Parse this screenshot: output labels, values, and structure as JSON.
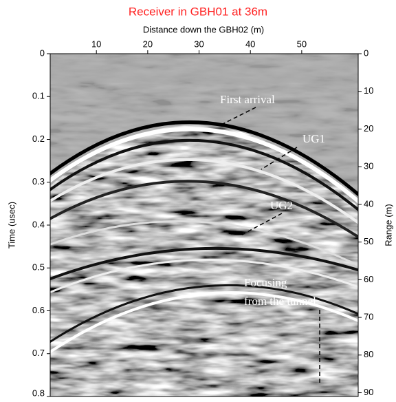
{
  "chart_data": {
    "type": "radargram",
    "title": "Receiver in GBH01 at 36m",
    "x_label": "Distance down the GBH02 (m)",
    "y_label": "Time (usec)",
    "y2_label": "Range (m)",
    "xlim": [
      1,
      61
    ],
    "xticks": [
      10,
      20,
      30,
      40,
      50
    ],
    "ylim": [
      0,
      0.8
    ],
    "yticks": [
      0,
      0.1,
      0.2,
      0.3,
      0.4,
      0.5,
      0.6,
      0.7,
      0.8
    ],
    "y2lim": [
      0,
      91
    ],
    "y2ticks": [
      0,
      10,
      20,
      30,
      40,
      50,
      60,
      70,
      80,
      90
    ],
    "title_color": "#ff2020",
    "annotations": [
      "First arrival",
      "UG1",
      "UG2",
      "Focusing",
      "from the tunnel"
    ]
  }
}
